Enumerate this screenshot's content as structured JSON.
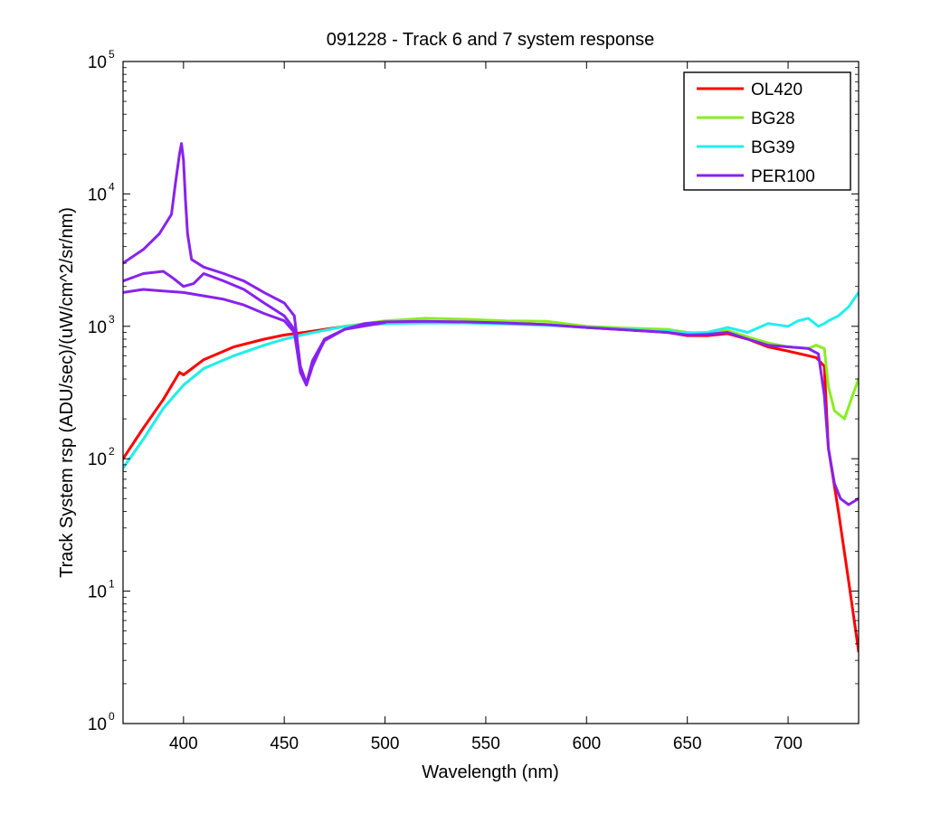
{
  "chart_data": {
    "type": "line",
    "title": "091228 - Track 6 and 7 system response",
    "xlabel": "Wavelength (nm)",
    "ylabel": "Track System rsp (ADU/sec)/(uW/cm^2/sr/nm)",
    "xlim": [
      370,
      735
    ],
    "ylim": [
      1,
      100000
    ],
    "yscale": "log",
    "grid": false,
    "legend_position": "top-right",
    "xticks": [
      400,
      450,
      500,
      550,
      600,
      650,
      700
    ],
    "xtick_labels": [
      "400",
      "450",
      "500",
      "550",
      "600",
      "650",
      "700"
    ],
    "yticks": [
      1,
      10,
      100,
      1000,
      10000,
      100000
    ],
    "ytick_base": "10",
    "ytick_exponents": [
      "0",
      "1",
      "2",
      "3",
      "4",
      "5"
    ],
    "series": [
      {
        "name": "OL420",
        "color": "#ff0000",
        "x": [
          370,
          380,
          390,
          398,
          400,
          410,
          425,
          440,
          450,
          460,
          480,
          500,
          520,
          540,
          560,
          580,
          600,
          620,
          640,
          650,
          660,
          670,
          680,
          690,
          700,
          710,
          714,
          718,
          720,
          725,
          730,
          735
        ],
        "y": [
          100,
          170,
          280,
          450,
          430,
          560,
          700,
          800,
          860,
          900,
          1000,
          1050,
          1080,
          1080,
          1060,
          1030,
          980,
          940,
          900,
          850,
          850,
          880,
          800,
          700,
          650,
          600,
          580,
          500,
          120,
          40,
          12,
          3.5
        ]
      },
      {
        "name": "BG28",
        "color": "#88ee22",
        "x": [
          370,
          380,
          390,
          400,
          410,
          425,
          440,
          450,
          460,
          480,
          500,
          520,
          540,
          560,
          580,
          600,
          620,
          640,
          650,
          660,
          670,
          680,
          690,
          700,
          710,
          714,
          718,
          720,
          723,
          728,
          732,
          735
        ],
        "y": [
          85,
          140,
          240,
          360,
          480,
          600,
          720,
          800,
          870,
          1000,
          1100,
          1150,
          1130,
          1100,
          1090,
          1000,
          970,
          950,
          900,
          880,
          930,
          830,
          750,
          700,
          680,
          720,
          680,
          350,
          230,
          200,
          300,
          400
        ]
      },
      {
        "name": "BG39",
        "color": "#22eeee",
        "x": [
          370,
          380,
          390,
          400,
          410,
          425,
          440,
          450,
          460,
          480,
          500,
          520,
          540,
          560,
          580,
          600,
          620,
          640,
          650,
          660,
          670,
          680,
          690,
          700,
          705,
          710,
          715,
          718,
          720,
          725,
          730,
          735
        ],
        "y": [
          85,
          140,
          240,
          360,
          480,
          600,
          720,
          800,
          870,
          1000,
          1050,
          1060,
          1060,
          1040,
          1020,
          980,
          950,
          920,
          890,
          900,
          980,
          900,
          1050,
          1000,
          1100,
          1150,
          1000,
          1050,
          1100,
          1200,
          1400,
          1800
        ]
      },
      {
        "name": "PER100",
        "color": "#8822ee",
        "x": [
          370,
          380,
          388,
          394,
          396,
          398,
          399,
          400,
          401,
          402,
          404,
          410,
          420,
          430,
          440,
          450,
          455,
          458,
          461,
          464,
          470,
          480,
          490,
          500,
          520,
          540,
          560,
          580,
          600,
          620,
          640,
          650,
          660,
          670,
          680,
          690,
          700,
          710,
          715,
          718,
          720,
          723,
          726,
          730,
          735
        ],
        "y": [
          3000,
          3800,
          5000,
          7000,
          12000,
          20000,
          24000,
          18000,
          9000,
          5000,
          3200,
          2800,
          2500,
          2200,
          1800,
          1500,
          1200,
          500,
          370,
          550,
          800,
          950,
          1050,
          1080,
          1090,
          1080,
          1060,
          1030,
          980,
          940,
          900,
          860,
          870,
          900,
          800,
          720,
          700,
          680,
          620,
          300,
          120,
          65,
          50,
          45,
          50
        ]
      },
      {
        "name": "",
        "color": "#8822ee",
        "x": [
          370,
          380,
          390,
          400,
          410,
          420,
          430,
          440,
          450,
          455,
          458,
          461,
          464,
          470,
          480,
          500
        ],
        "y": [
          1800,
          1900,
          1850,
          1800,
          1700,
          1600,
          1450,
          1250,
          1100,
          900,
          450,
          360,
          500,
          800,
          950,
          1070
        ]
      },
      {
        "name": "",
        "color": "#8822ee",
        "x": [
          370,
          380,
          390,
          395,
          400,
          405,
          410,
          420,
          430,
          440,
          450,
          455,
          458,
          461,
          464,
          470,
          480
        ],
        "y": [
          2200,
          2500,
          2600,
          2300,
          2000,
          2100,
          2500,
          2200,
          1900,
          1500,
          1200,
          950,
          480,
          370,
          520,
          780,
          950
        ]
      }
    ],
    "legend": [
      "OL420",
      "BG28",
      "BG39",
      "PER100"
    ]
  }
}
